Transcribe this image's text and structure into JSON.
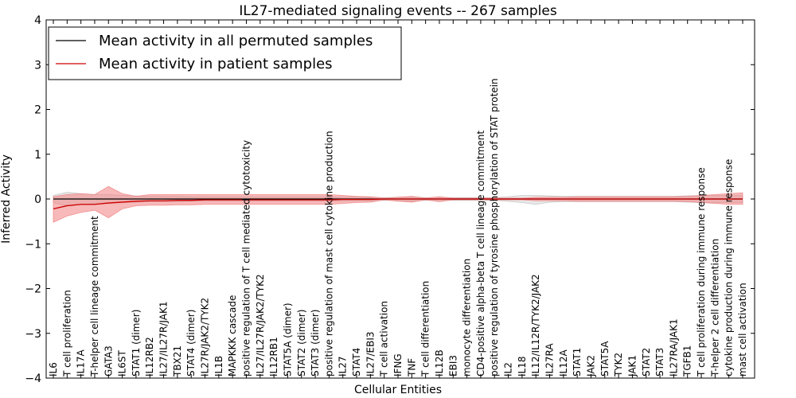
{
  "chart_data": {
    "type": "line",
    "title": "IL27-mediated signaling events -- 267 samples",
    "xlabel": "Cellular Entities",
    "ylabel": "Inferred Activity",
    "ylim": [
      -4,
      4
    ],
    "yticks": [
      "−4",
      "−3",
      "−2",
      "−1",
      "0",
      "1",
      "2",
      "3",
      "4"
    ],
    "grid": false,
    "legend_position": "top-left",
    "categories": [
      "IL6",
      "T cell proliferation",
      "IL17A",
      "T-helper cell lineage commitment",
      "GATA3",
      "IL6ST",
      "STAT1 (dimer)",
      "IL12RB2",
      "IL27/IL27R/JAK1",
      "TBX21",
      "STAT4 (dimer)",
      "IL27R/JAK2/TYK2",
      "IL1B",
      "MAPKKK cascade",
      "positive regulation of T cell mediated cytotoxicity",
      "IL27/IL27R/JAK2/TYK2",
      "IL12RB1",
      "STAT5A (dimer)",
      "STAT2 (dimer)",
      "STAT3 (dimer)",
      "positive regulation of mast cell cytokine production",
      "IL27",
      "STAT4",
      "IL27/EBI3",
      "T cell activation",
      "IFNG",
      "TNF",
      "T cell differentiation",
      "IL12B",
      "EBI3",
      "monocyte differentiation",
      "CD4-positive alpha-beta T cell lineage commitment",
      "positive regulation of tyrosine phosphorylation of STAT protein",
      "IL2",
      "IL18",
      "IL12/IL12R/TYK2/JAK2",
      "IL27RA",
      "IL12A",
      "STAT1",
      "JAK2",
      "STAT5A",
      "TYK2",
      "JAK1",
      "STAT2",
      "STAT3",
      "IL27RA/JAK1",
      "TGFB1",
      "T cell proliferation during immune response",
      "T-helper 2 cell differentiation",
      "cytokine production during immune response",
      "mast cell activation"
    ],
    "series": [
      {
        "name": "Mean activity in all permuted samples",
        "color": "#000000",
        "values": [
          0.0,
          0.0,
          0.0,
          0.0,
          0.0,
          0.0,
          0.0,
          0.0,
          0.0,
          0.0,
          0.0,
          0.0,
          0.0,
          0.0,
          0.0,
          0.0,
          0.0,
          0.0,
          0.0,
          0.0,
          0.0,
          0.0,
          0.0,
          0.0,
          0.0,
          0.0,
          0.0,
          0.0,
          0.0,
          0.0,
          0.0,
          0.0,
          0.0,
          0.0,
          0.0,
          0.0,
          0.0,
          0.0,
          0.0,
          0.0,
          0.0,
          0.0,
          0.0,
          0.0,
          0.0,
          0.0,
          0.0,
          0.0,
          0.0,
          0.0,
          0.0
        ],
        "band_upper": [
          0.08,
          0.15,
          0.12,
          0.1,
          0.1,
          0.08,
          0.07,
          0.06,
          0.06,
          0.06,
          0.05,
          0.05,
          0.05,
          0.05,
          0.05,
          0.05,
          0.05,
          0.05,
          0.05,
          0.05,
          0.05,
          0.04,
          0.04,
          0.04,
          0.03,
          0.04,
          0.05,
          0.03,
          0.04,
          0.03,
          0.03,
          0.03,
          0.03,
          0.05,
          0.08,
          0.08,
          0.07,
          0.06,
          0.06,
          0.06,
          0.06,
          0.06,
          0.06,
          0.06,
          0.06,
          0.06,
          0.07,
          0.08,
          0.08,
          0.08,
          0.08
        ],
        "band_lower": [
          -0.08,
          -0.15,
          -0.12,
          -0.1,
          -0.1,
          -0.08,
          -0.07,
          -0.06,
          -0.06,
          -0.06,
          -0.05,
          -0.05,
          -0.05,
          -0.05,
          -0.05,
          -0.05,
          -0.05,
          -0.05,
          -0.05,
          -0.05,
          -0.05,
          -0.04,
          -0.04,
          -0.04,
          -0.03,
          -0.04,
          -0.05,
          -0.03,
          -0.04,
          -0.03,
          -0.03,
          -0.03,
          -0.03,
          -0.05,
          -0.08,
          -0.12,
          -0.07,
          -0.06,
          -0.06,
          -0.06,
          -0.06,
          -0.06,
          -0.06,
          -0.06,
          -0.06,
          -0.06,
          -0.07,
          -0.08,
          -0.08,
          -0.08,
          -0.08
        ]
      },
      {
        "name": "Mean activity in patient samples",
        "color": "#cc0000",
        "values": [
          -0.22,
          -0.15,
          -0.12,
          -0.12,
          -0.09,
          -0.07,
          -0.05,
          -0.04,
          -0.04,
          -0.03,
          -0.03,
          -0.02,
          -0.02,
          -0.02,
          -0.02,
          -0.02,
          -0.02,
          -0.02,
          -0.02,
          -0.02,
          -0.02,
          -0.01,
          -0.01,
          -0.01,
          0.0,
          0.0,
          0.0,
          0.0,
          0.0,
          0.0,
          0.0,
          0.0,
          0.0,
          0.0,
          0.0,
          0.0,
          0.0,
          0.0,
          0.0,
          0.0,
          0.0,
          0.0,
          0.0,
          0.0,
          0.0,
          0.0,
          0.0,
          0.0,
          0.0,
          0.0,
          0.0
        ],
        "band_upper": [
          0.05,
          0.1,
          0.12,
          0.1,
          0.28,
          0.12,
          0.06,
          0.1,
          0.1,
          0.1,
          0.1,
          0.1,
          0.1,
          0.1,
          0.1,
          0.1,
          0.1,
          0.1,
          0.1,
          0.1,
          0.1,
          0.08,
          0.06,
          0.05,
          0.02,
          0.04,
          0.06,
          0.02,
          0.05,
          0.02,
          0.02,
          0.02,
          0.02,
          0.02,
          0.02,
          0.04,
          0.04,
          0.04,
          0.05,
          0.05,
          0.05,
          0.05,
          0.05,
          0.05,
          0.05,
          0.05,
          0.06,
          0.08,
          0.1,
          0.12,
          0.14
        ],
        "band_lower": [
          -0.52,
          -0.38,
          -0.3,
          -0.25,
          -0.42,
          -0.22,
          -0.15,
          -0.14,
          -0.14,
          -0.13,
          -0.13,
          -0.12,
          -0.12,
          -0.12,
          -0.12,
          -0.12,
          -0.12,
          -0.12,
          -0.12,
          -0.12,
          -0.12,
          -0.1,
          -0.08,
          -0.07,
          -0.02,
          -0.05,
          -0.07,
          -0.02,
          -0.06,
          -0.02,
          -0.02,
          -0.02,
          -0.02,
          -0.02,
          -0.02,
          -0.04,
          -0.04,
          -0.04,
          -0.05,
          -0.05,
          -0.05,
          -0.05,
          -0.05,
          -0.05,
          -0.05,
          -0.05,
          -0.06,
          -0.08,
          -0.1,
          -0.12,
          -0.12
        ]
      }
    ]
  }
}
